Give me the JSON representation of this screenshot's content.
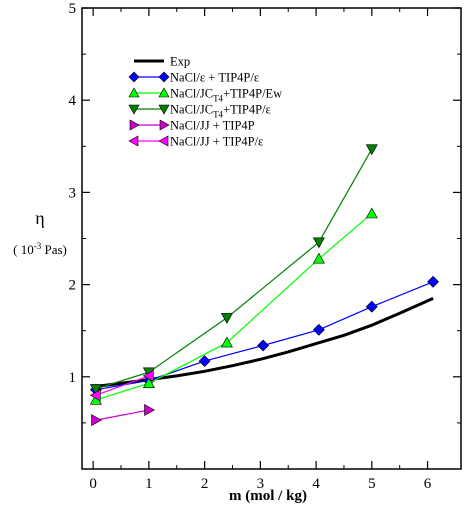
{
  "chart_data": {
    "type": "line",
    "xlabel": "m  (mol / kg)",
    "ylabel": "η",
    "ylabel_unit_base": "( 10",
    "ylabel_unit_exp": "-3",
    "ylabel_unit_rest": " Pas)",
    "xlim": [
      -0.2,
      6.6
    ],
    "ylim": [
      0,
      5
    ],
    "xticks": [
      "0",
      "1",
      "2",
      "3",
      "4",
      "5",
      "6"
    ],
    "yticks": [
      "1",
      "2",
      "3",
      "4",
      "5"
    ],
    "grid": false,
    "legend_position": "top-left",
    "series": [
      {
        "name": "Exp",
        "name_parts": [
          "Exp"
        ],
        "color": "#000000",
        "marker": "none",
        "x": [
          0,
          0.5,
          1,
          1.5,
          2,
          2.5,
          3,
          3.5,
          4,
          4.5,
          5,
          5.5,
          6.1
        ],
        "y": [
          0.89,
          0.93,
          0.97,
          1.01,
          1.06,
          1.12,
          1.19,
          1.27,
          1.36,
          1.45,
          1.56,
          1.69,
          1.85
        ]
      },
      {
        "name": "NaCl/ε + TIP4P/ε",
        "name_parts": [
          "NaCl/ε + TIP4P/ε"
        ],
        "color": "#0000ff",
        "marker": "diamond",
        "x": [
          0.05,
          1,
          2,
          3.05,
          4.05,
          5,
          6.1
        ],
        "y": [
          0.86,
          0.96,
          1.17,
          1.34,
          1.51,
          1.76,
          2.03
        ]
      },
      {
        "name": "NaCl/JCT4+TIP4P/Ew",
        "name_parts": [
          "NaCl/JC",
          "T4",
          "+TIP4P/Ew"
        ],
        "color": "#00ff00",
        "marker": "triangle-up",
        "x": [
          0.05,
          1,
          2.4,
          4.05,
          5
        ],
        "y": [
          0.75,
          0.93,
          1.37,
          2.28,
          2.77
        ]
      },
      {
        "name": "NaCl/JCT4+TIP4P/ε",
        "name_parts": [
          "NaCl/JC",
          "T4",
          "+TIP4P/ε"
        ],
        "color": "#008000",
        "marker": "triangle-down",
        "x": [
          0.05,
          1,
          2.4,
          4.05,
          5
        ],
        "y": [
          0.87,
          1.05,
          1.64,
          2.46,
          3.47
        ]
      },
      {
        "name": "NaCl/JJ + TIP4P",
        "name_parts": [
          "NaCl/JJ + TIP4P"
        ],
        "color": "#cc00cc",
        "marker": "triangle-right",
        "x": [
          0.05,
          1
        ],
        "y": [
          0.53,
          0.64
        ]
      },
      {
        "name": "NaCl/JJ + TIP4P/ε",
        "name_parts": [
          "NaCl/JJ + TIP4P/ε"
        ],
        "color": "#ff00ff",
        "marker": "triangle-left",
        "x": [
          0.05,
          1
        ],
        "y": [
          0.8,
          1.01
        ]
      }
    ]
  }
}
